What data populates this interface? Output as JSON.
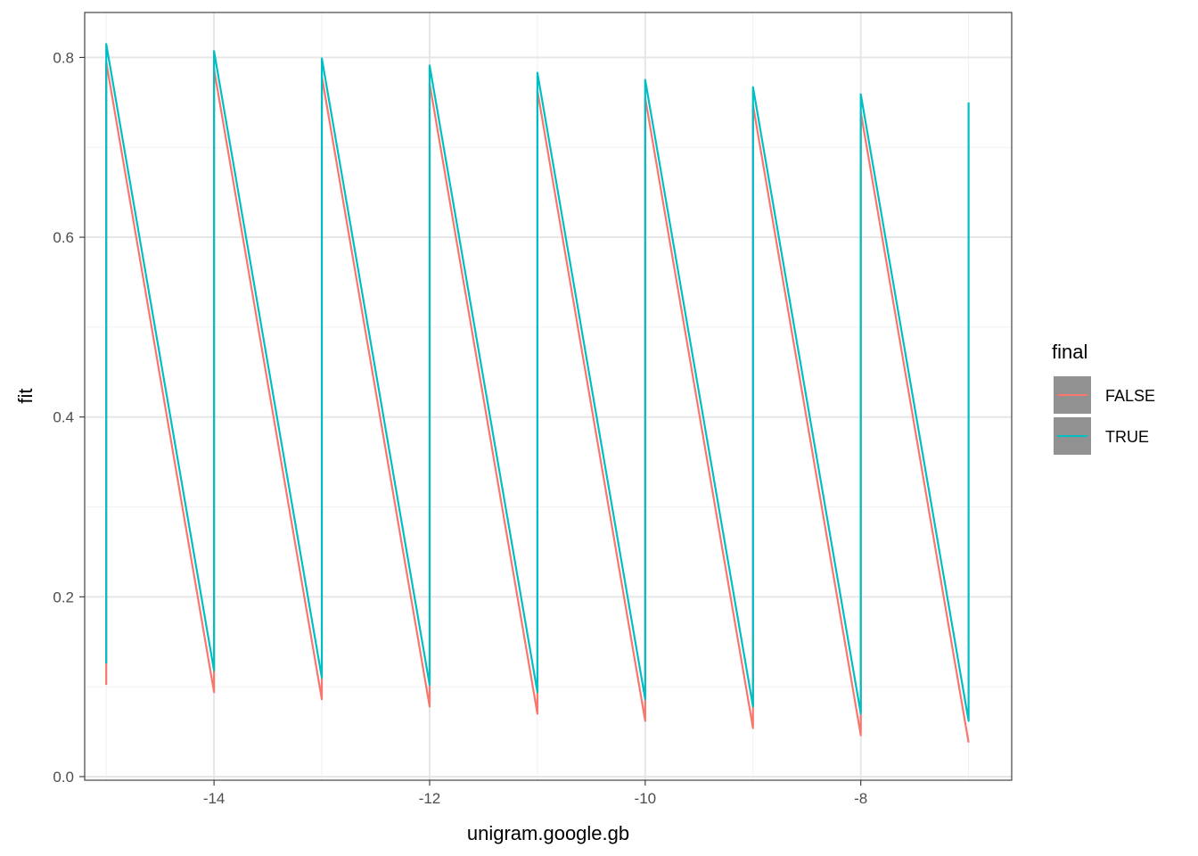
{
  "chart_data": {
    "type": "line",
    "xlabel": "unigram.google.gb",
    "ylabel": "fit",
    "xlim": [
      -15.2,
      -6.6
    ],
    "ylim": [
      -0.004,
      0.85
    ],
    "x_ticks": [
      -14,
      -12,
      -10,
      -8
    ],
    "x_tick_labels": [
      "-14",
      "-12",
      "-10",
      "-8"
    ],
    "y_ticks": [
      0.0,
      0.2,
      0.4,
      0.6,
      0.8
    ],
    "y_tick_labels": [
      "0.0",
      "0.2",
      "0.4",
      "0.6",
      "0.8"
    ],
    "grid": true,
    "legend": {
      "title": "final",
      "position": "right",
      "entries": [
        "FALSE",
        "TRUE"
      ]
    },
    "series": [
      {
        "name": "FALSE",
        "color": "#F8766D",
        "points": [
          [
            -15,
            0.102
          ],
          [
            -15,
            0.795
          ],
          [
            -14,
            0.094
          ],
          [
            -14,
            0.787
          ],
          [
            -13,
            0.086
          ],
          [
            -13,
            0.779
          ],
          [
            -12,
            0.078
          ],
          [
            -12,
            0.771
          ],
          [
            -11,
            0.07
          ],
          [
            -11,
            0.763
          ],
          [
            -10,
            0.062
          ],
          [
            -10,
            0.755
          ],
          [
            -9,
            0.054
          ],
          [
            -9,
            0.747
          ],
          [
            -8,
            0.046
          ],
          [
            -8,
            0.739
          ],
          [
            -7,
            0.038
          ]
        ]
      },
      {
        "name": "TRUE",
        "color": "#00BFC4",
        "points": [
          [
            -15,
            0.126
          ],
          [
            -15,
            0.815
          ],
          [
            -14,
            0.118
          ],
          [
            -14,
            0.807
          ],
          [
            -13,
            0.11
          ],
          [
            -13,
            0.799
          ],
          [
            -12,
            0.102
          ],
          [
            -12,
            0.791
          ],
          [
            -11,
            0.094
          ],
          [
            -11,
            0.783
          ],
          [
            -10,
            0.086
          ],
          [
            -10,
            0.775
          ],
          [
            -9,
            0.078
          ],
          [
            -9,
            0.767
          ],
          [
            -8,
            0.07
          ],
          [
            -8,
            0.759
          ],
          [
            -7,
            0.062
          ],
          [
            -7,
            0.75
          ]
        ]
      }
    ]
  }
}
